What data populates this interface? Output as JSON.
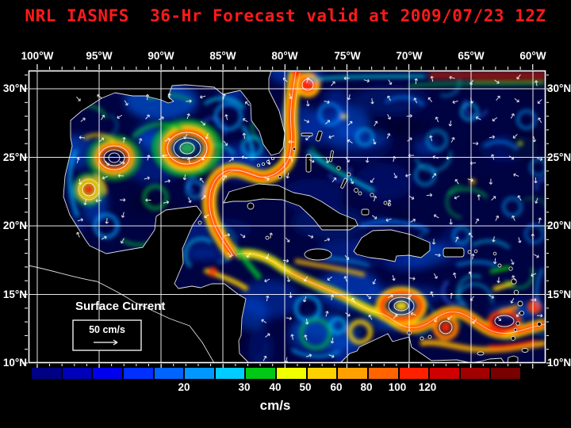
{
  "title": "NRL IASNFS  36-Hr Forecast valid at 2009/07/23 12Z",
  "axes": {
    "lon_labels": [
      "100°W",
      "95°W",
      "90°W",
      "85°W",
      "80°W",
      "75°W",
      "70°W",
      "65°W",
      "60°W"
    ],
    "lat_labels": [
      "30°N",
      "25°N",
      "20°N",
      "15°N",
      "10°N"
    ]
  },
  "map": {
    "annotation": "Surface Current",
    "scale_label": "50 cm/s"
  },
  "colorbar": {
    "tick_labels": [
      "20",
      "30",
      "40",
      "50",
      "60",
      "80",
      "100",
      "120"
    ],
    "unit": "cm/s",
    "colors": [
      "#000084",
      "#0000b8",
      "#0000ec",
      "#0030ff",
      "#0064ff",
      "#0098ff",
      "#00ccff",
      "#00c814",
      "#f0ff00",
      "#ffd000",
      "#ffa000",
      "#ff6400",
      "#ff2000",
      "#d00000",
      "#a00000",
      "#780000"
    ]
  }
}
